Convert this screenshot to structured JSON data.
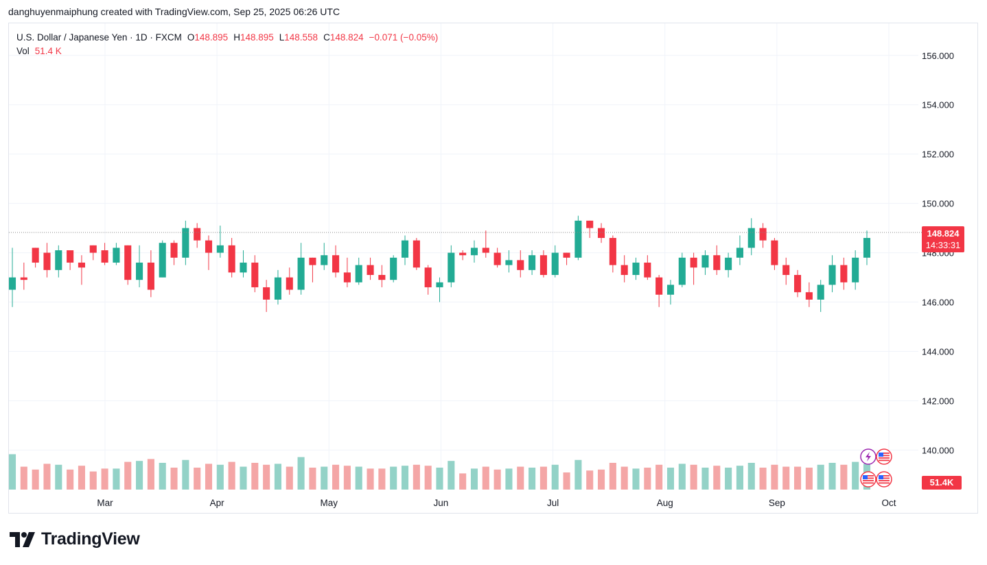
{
  "credit": "danghuyenmaiphung created with TradingView.com, Sep 25, 2025 06:26 UTC",
  "legend": {
    "symbol": "U.S. Dollar / Japanese Yen · 1D · FXCM",
    "o_label": "O",
    "o_value": "148.895",
    "h_label": "H",
    "h_value": "148.895",
    "l_label": "L",
    "l_value": "148.558",
    "c_label": "C",
    "c_value": "148.824",
    "change": "−0.071 (−0.05%)",
    "vol_label": "Vol",
    "vol_value": "51.4 K"
  },
  "price_tag": {
    "price": "148.824",
    "countdown": "14:33:31"
  },
  "volume_tag": "51.4K",
  "brand": "TradingView",
  "colors": {
    "up": "#22ab94",
    "down": "#f23645",
    "up_vol": "#93d2c7",
    "down_vol": "#f4a6a6",
    "grid": "#f0f3fa",
    "price_line": "#888888"
  },
  "icons": [
    "lightning-icon",
    "us-flag-icon",
    "us-flag-icon",
    "us-flag-icon"
  ],
  "chart_data": {
    "type": "candlestick",
    "title": "U.S. Dollar / Japanese Yen · 1D · FXCM",
    "y_ticks": [
      "156.000",
      "154.000",
      "152.000",
      "150.000",
      "148.000",
      "146.000",
      "144.000",
      "142.000",
      "140.000"
    ],
    "y_range": [
      138.4,
      157.3
    ],
    "x_ticks": [
      {
        "label": "Mar",
        "date": "2025-03-03"
      },
      {
        "label": "Apr",
        "date": "2025-04-01"
      },
      {
        "label": "May",
        "date": "2025-05-01"
      },
      {
        "label": "Jun",
        "date": "2025-06-02"
      },
      {
        "label": "Jul",
        "date": "2025-07-01"
      },
      {
        "label": "Aug",
        "date": "2025-08-01"
      },
      {
        "label": "Sep",
        "date": "2025-09-01"
      },
      {
        "label": "Oct",
        "date": "2025-10-01"
      }
    ],
    "last_price": 148.824,
    "ohlc": [
      [
        146.5,
        148.2,
        145.8,
        147.0
      ],
      [
        147.0,
        147.6,
        146.5,
        146.9
      ],
      [
        148.2,
        148.2,
        147.4,
        147.6
      ],
      [
        148.0,
        148.4,
        147.0,
        147.3
      ],
      [
        147.3,
        148.3,
        147.0,
        148.1
      ],
      [
        148.1,
        148.1,
        147.3,
        147.6
      ],
      [
        147.6,
        147.9,
        146.7,
        147.4
      ],
      [
        148.3,
        148.3,
        147.7,
        148.0
      ],
      [
        148.1,
        148.4,
        147.5,
        147.6
      ],
      [
        147.6,
        148.4,
        147.5,
        148.2
      ],
      [
        148.3,
        148.3,
        146.7,
        146.9
      ],
      [
        146.9,
        148.3,
        146.6,
        147.6
      ],
      [
        147.6,
        148.1,
        146.2,
        146.5
      ],
      [
        147.0,
        148.5,
        147.0,
        148.4
      ],
      [
        148.4,
        148.5,
        147.5,
        147.8
      ],
      [
        147.8,
        149.3,
        147.5,
        149.0
      ],
      [
        149.0,
        149.2,
        148.2,
        148.5
      ],
      [
        148.5,
        148.7,
        147.3,
        148.0
      ],
      [
        148.0,
        149.1,
        147.8,
        148.3
      ],
      [
        148.3,
        148.6,
        147.0,
        147.2
      ],
      [
        147.2,
        148.1,
        147.0,
        147.6
      ],
      [
        147.6,
        147.9,
        146.4,
        146.6
      ],
      [
        146.6,
        146.9,
        145.6,
        146.1
      ],
      [
        146.1,
        147.3,
        145.9,
        147.0
      ],
      [
        147.0,
        147.4,
        146.3,
        146.5
      ],
      [
        146.5,
        148.4,
        146.3,
        147.8
      ],
      [
        147.8,
        147.8,
        146.8,
        147.5
      ],
      [
        147.5,
        148.4,
        147.3,
        147.9
      ],
      [
        147.9,
        148.3,
        147.0,
        147.2
      ],
      [
        147.2,
        147.8,
        146.6,
        146.8
      ],
      [
        146.8,
        147.8,
        146.7,
        147.5
      ],
      [
        147.5,
        147.8,
        146.9,
        147.1
      ],
      [
        147.1,
        147.5,
        146.6,
        146.9
      ],
      [
        146.9,
        147.9,
        146.8,
        147.8
      ],
      [
        147.8,
        148.7,
        147.5,
        148.5
      ],
      [
        148.5,
        148.6,
        147.3,
        147.4
      ],
      [
        147.4,
        147.5,
        146.3,
        146.6
      ],
      [
        146.6,
        147.0,
        146.0,
        146.8
      ],
      [
        146.8,
        148.3,
        146.6,
        148.0
      ],
      [
        148.0,
        148.1,
        147.7,
        147.9
      ],
      [
        147.9,
        148.5,
        147.6,
        148.2
      ],
      [
        148.2,
        148.9,
        147.8,
        148.0
      ],
      [
        148.0,
        148.2,
        147.4,
        147.5
      ],
      [
        147.5,
        148.1,
        147.2,
        147.7
      ],
      [
        147.7,
        148.1,
        147.0,
        147.3
      ],
      [
        147.3,
        148.1,
        147.1,
        147.9
      ],
      [
        147.9,
        148.1,
        147.0,
        147.1
      ],
      [
        147.1,
        148.3,
        147.0,
        148.0
      ],
      [
        148.0,
        148.0,
        147.5,
        147.8
      ],
      [
        147.8,
        149.5,
        147.7,
        149.3
      ],
      [
        149.3,
        149.3,
        148.6,
        149.0
      ],
      [
        149.0,
        149.2,
        148.4,
        148.6
      ],
      [
        148.6,
        148.7,
        147.2,
        147.5
      ],
      [
        147.5,
        147.9,
        146.8,
        147.1
      ],
      [
        147.1,
        147.8,
        146.9,
        147.6
      ],
      [
        147.6,
        147.9,
        146.9,
        147.0
      ],
      [
        147.0,
        147.1,
        145.8,
        146.3
      ],
      [
        146.3,
        146.9,
        145.9,
        146.7
      ],
      [
        146.7,
        148.0,
        146.6,
        147.8
      ],
      [
        147.8,
        148.0,
        146.7,
        147.4
      ],
      [
        147.4,
        148.1,
        147.1,
        147.9
      ],
      [
        147.9,
        148.3,
        147.1,
        147.3
      ],
      [
        147.3,
        148.0,
        147.0,
        147.8
      ],
      [
        147.8,
        148.7,
        147.5,
        148.2
      ],
      [
        148.2,
        149.4,
        147.9,
        149.0
      ],
      [
        149.0,
        149.2,
        148.2,
        148.5
      ],
      [
        148.5,
        148.6,
        147.3,
        147.5
      ],
      [
        147.5,
        147.8,
        146.7,
        147.1
      ],
      [
        147.1,
        147.3,
        146.2,
        146.4
      ],
      [
        146.4,
        146.8,
        145.8,
        146.1
      ],
      [
        146.1,
        146.9,
        145.6,
        146.7
      ],
      [
        146.7,
        147.9,
        146.4,
        147.5
      ],
      [
        147.5,
        147.8,
        146.5,
        146.8
      ],
      [
        146.8,
        148.1,
        146.5,
        147.8
      ],
      [
        147.8,
        148.9,
        147.5,
        148.6
      ]
    ]
  }
}
